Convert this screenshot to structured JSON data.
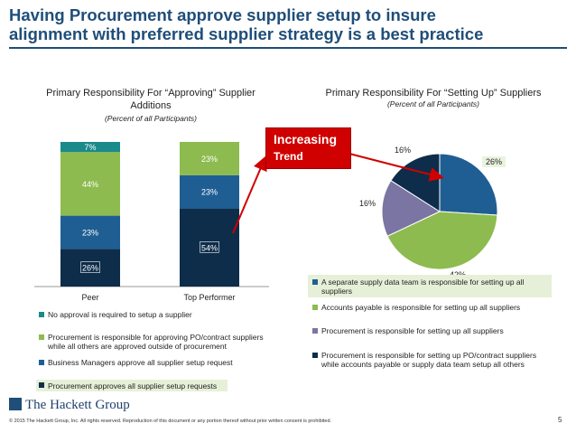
{
  "slide": {
    "title_line1": "Having Procurement approve supplier setup to insure",
    "title_line2": "alignment with preferred supplier strategy is a best practice",
    "callout_line1": "Increasing",
    "callout_line2": "Trend",
    "footer": "© 2015 The Hackett Group, Inc. All rights reserved. Reproduction of this document or any portion thereof without prior written consent is prohibited.",
    "page_number": "5",
    "logo_text": "The Hackett Group"
  },
  "colors": {
    "navy": "#0d2d4a",
    "blue": "#1f5e93",
    "green": "#8dbb4f",
    "teal": "#1a8a8a",
    "purple": "#7a75a3",
    "callout_red": "#d00000",
    "title_blue": "#1f4e79"
  },
  "chart_data": [
    {
      "type": "bar",
      "stacked": true,
      "title_line1": "Primary Responsibility For “Approving” Supplier",
      "title_line2": "Additions",
      "subtitle": "(Percent of all Participants)",
      "categories": [
        "Peer",
        "Top Performer"
      ],
      "ylim": [
        0,
        100
      ],
      "series": [
        {
          "name": "Procurement approves all supplier setup requests",
          "values": [
            26,
            54
          ],
          "labels": [
            "26%",
            "54%"
          ],
          "color": "#0d2d4a"
        },
        {
          "name": "Business Managers approve all supplier setup request",
          "values": [
            23,
            23
          ],
          "labels": [
            "23%",
            "23%"
          ],
          "color": "#1f5e93"
        },
        {
          "name": "Procurement is responsible for approving PO/contract suppliers while all others are approved outside of procurement",
          "values": [
            44,
            23
          ],
          "labels": [
            "44%",
            "23%"
          ],
          "color": "#8dbb4f"
        },
        {
          "name": "No approval is required to setup a supplier",
          "values": [
            7,
            0
          ],
          "labels": [
            "7%",
            ""
          ],
          "color": "#1a8a8a"
        }
      ],
      "legend": [
        {
          "line1": "No approval is required to setup a supplier",
          "line2": "",
          "color": "#1a8a8a"
        },
        {
          "line1": "Procurement is responsible for approving PO/contract suppliers",
          "line2": "while all others are approved outside of procurement",
          "color": "#8dbb4f"
        },
        {
          "line1": "Business Managers approve all supplier setup request",
          "line2": "",
          "color": "#1f5e93"
        },
        {
          "line1": "Procurement approves all supplier setup requests",
          "line2": "",
          "color": "#0d2d4a"
        }
      ]
    },
    {
      "type": "pie",
      "title": "Primary Responsibility For “Setting Up” Suppliers",
      "subtitle": "(Percent of all Participants)",
      "slices": [
        {
          "name": "A separate supply data team is responsible for setting up all suppliers",
          "value": 26,
          "label": "26%",
          "color": "#1f5e93"
        },
        {
          "name": "Accounts payable is responsible for setting up all suppliers",
          "value": 42,
          "label": "42%",
          "color": "#8dbb4f"
        },
        {
          "name": "Procurement is responsible for setting up all suppliers",
          "value": 16,
          "label": "16%",
          "color": "#7a75a3"
        },
        {
          "name": "Procurement is responsible for setting up PO/contract suppliers while accounts payable or supply data team setup all others",
          "value": 16,
          "label": "16%",
          "color": "#0d2d4a"
        }
      ],
      "legend": [
        {
          "line1": "A separate supply data team is responsible for setting up all",
          "line2": "suppliers",
          "color": "#1f5e93"
        },
        {
          "line1": "Accounts payable is responsible for setting up all suppliers",
          "line2": "",
          "color": "#8dbb4f"
        },
        {
          "line1": "Procurement is responsible for setting up all suppliers",
          "line2": "",
          "color": "#7a75a3"
        },
        {
          "line1": "Procurement is responsible for setting up PO/contract suppliers",
          "line2": "while accounts payable or supply data team setup all others",
          "color": "#0d2d4a"
        }
      ]
    }
  ]
}
